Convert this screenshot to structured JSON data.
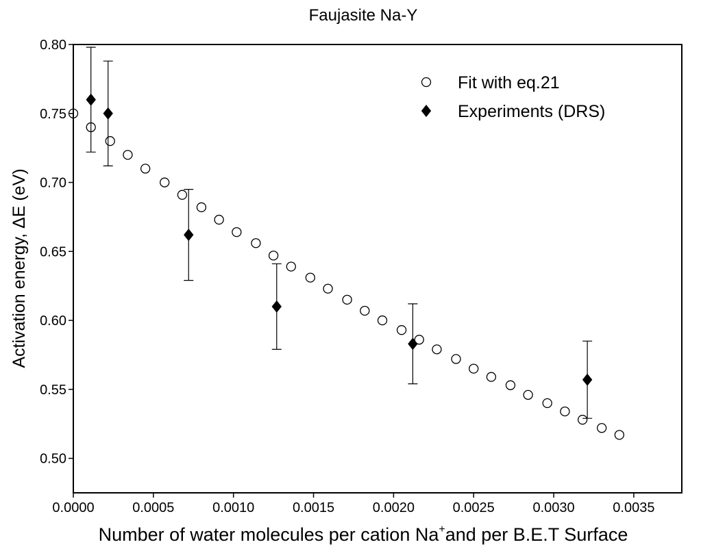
{
  "chart_data": {
    "type": "scatter",
    "title": "Faujasite Na-Y",
    "xlabel_parts": [
      "Number of water molecules per cation Na",
      "+",
      "and per B.E.T Surface"
    ],
    "ylabel": "Activation energy, ΔE (eV)",
    "xlim": [
      0,
      0.0038
    ],
    "ylim": [
      0.475,
      0.8
    ],
    "xticks": [
      {
        "value": 0,
        "label": "0.0000"
      },
      {
        "value": 0.0005,
        "label": "0.0005"
      },
      {
        "value": 0.001,
        "label": "0.0010"
      },
      {
        "value": 0.0015,
        "label": "0.0015"
      },
      {
        "value": 0.002,
        "label": "0.0020"
      },
      {
        "value": 0.0025,
        "label": "0.0025"
      },
      {
        "value": 0.003,
        "label": "0.0030"
      },
      {
        "value": 0.0035,
        "label": "0.0035"
      }
    ],
    "yticks": [
      {
        "value": 0.5,
        "label": "0.50"
      },
      {
        "value": 0.55,
        "label": "0.55"
      },
      {
        "value": 0.6,
        "label": "0.60"
      },
      {
        "value": 0.65,
        "label": "0.65"
      },
      {
        "value": 0.7,
        "label": "0.70"
      },
      {
        "value": 0.75,
        "label": "0.75"
      },
      {
        "value": 0.8,
        "label": "0.80"
      }
    ],
    "legend_position": "upper right",
    "series": [
      {
        "name": "Fit with eq.21",
        "color": "#000000",
        "marker": "open-circle",
        "x": [
          0,
          0.00011,
          0.00023,
          0.00034,
          0.00045,
          0.00057,
          0.00068,
          0.0008,
          0.00091,
          0.00102,
          0.00114,
          0.00125,
          0.00136,
          0.00148,
          0.00159,
          0.00171,
          0.00182,
          0.00193,
          0.00205,
          0.00216,
          0.00227,
          0.00239,
          0.0025,
          0.00261,
          0.00273,
          0.00284,
          0.00296,
          0.00307,
          0.00318,
          0.0033,
          0.00341
        ],
        "values": [
          0.75,
          0.74,
          0.73,
          0.72,
          0.71,
          0.7,
          0.691,
          0.682,
          0.673,
          0.664,
          0.656,
          0.647,
          0.639,
          0.631,
          0.623,
          0.615,
          0.607,
          0.6,
          0.593,
          0.586,
          0.579,
          0.572,
          0.565,
          0.559,
          0.553,
          0.546,
          0.54,
          0.534,
          0.528,
          0.522,
          0.517
        ]
      },
      {
        "name": "Experiments (DRS)",
        "color": "#000000",
        "marker": "diamond",
        "x": [
          0.00011,
          0.000217,
          0.00072,
          0.00127,
          0.00212,
          0.00321
        ],
        "values": [
          0.76,
          0.75,
          0.662,
          0.61,
          0.583,
          0.557
        ],
        "errors": [
          0.038,
          0.038,
          0.033,
          0.031,
          0.029,
          0.028
        ]
      }
    ]
  }
}
